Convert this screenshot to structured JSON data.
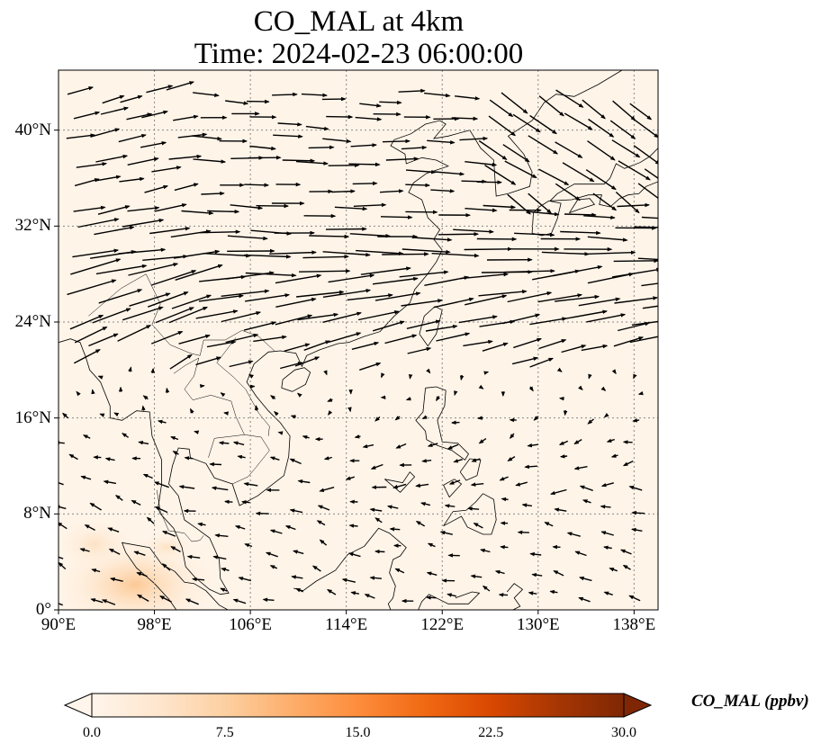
{
  "title": {
    "line1": "CO_MAL at 4km",
    "line2": "Time: 2024-02-23 06:00:00"
  },
  "map": {
    "extent": {
      "lon_min": 90,
      "lon_max": 140,
      "lat_min": 0,
      "lat_max": 45
    },
    "gridlines": true,
    "gridline_style": "dotted",
    "lat_ticks": [
      {
        "value": 0,
        "label": "0°"
      },
      {
        "value": 8,
        "label": "8°N"
      },
      {
        "value": 16,
        "label": "16°N"
      },
      {
        "value": 24,
        "label": "24°N"
      },
      {
        "value": 32,
        "label": "32°N"
      },
      {
        "value": 40,
        "label": "40°N"
      }
    ],
    "lon_ticks": [
      {
        "value": 90,
        "label": "90°E"
      },
      {
        "value": 98,
        "label": "98°E"
      },
      {
        "value": 106,
        "label": "106°E"
      },
      {
        "value": 114,
        "label": "114°E"
      },
      {
        "value": 122,
        "label": "122°E"
      },
      {
        "value": 130,
        "label": "130°E"
      },
      {
        "value": 138,
        "label": "138°E"
      }
    ],
    "field_colors": {
      "background": "#fff4e8",
      "high_area": "#fdd7a9",
      "coastline": "#000000",
      "vector": "#000000",
      "grid": "#888888"
    }
  },
  "colorbar": {
    "label": "CO_MAL (ppbv)",
    "min": 0.0,
    "max": 30.0,
    "extend": "both",
    "ticks": [
      "0.0",
      "7.5",
      "15.0",
      "22.5",
      "30.0"
    ],
    "colormap": [
      "#fff5eb",
      "#fee6ce",
      "#fdd0a2",
      "#fdae6b",
      "#fd8d3c",
      "#f16913",
      "#d94801",
      "#a63603",
      "#7f2704"
    ]
  }
}
